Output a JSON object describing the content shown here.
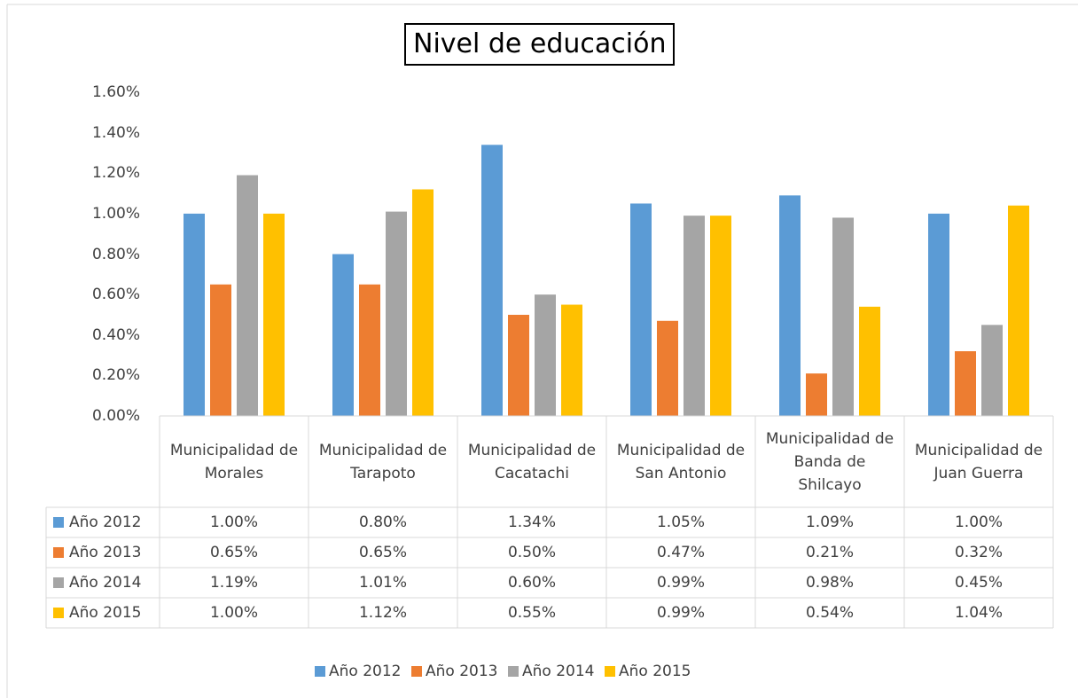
{
  "chart_data": {
    "type": "bar",
    "title": "Nivel de educación",
    "categories": [
      "Municipalidad de Morales",
      "Municipalidad de Tarapoto",
      "Municipalidad de Cacatachi",
      "Municipalidad de San Antonio",
      "Municipalidad de Banda de Shilcayo",
      "Municipalidad de Juan Guerra"
    ],
    "series": [
      {
        "name": "Año 2012",
        "color": "#5b9bd5",
        "values": [
          1.0,
          0.8,
          1.34,
          1.05,
          1.09,
          1.0
        ],
        "value_labels": [
          "1.00%",
          "0.80%",
          "1.34%",
          "1.05%",
          "1.09%",
          "1.00%"
        ]
      },
      {
        "name": "Año 2013",
        "color": "#ed7d31",
        "values": [
          0.65,
          0.65,
          0.5,
          0.47,
          0.21,
          0.32
        ],
        "value_labels": [
          "0.65%",
          "0.65%",
          "0.50%",
          "0.47%",
          "0.21%",
          "0.32%"
        ]
      },
      {
        "name": "Año 2014",
        "color": "#a5a5a5",
        "values": [
          1.19,
          1.01,
          0.6,
          0.99,
          0.98,
          0.45
        ],
        "value_labels": [
          "1.19%",
          "1.01%",
          "0.60%",
          "0.99%",
          "0.98%",
          "0.45%"
        ]
      },
      {
        "name": "Año 2015",
        "color": "#ffc000",
        "values": [
          1.0,
          1.12,
          0.55,
          0.99,
          0.54,
          1.04
        ],
        "value_labels": [
          "1.00%",
          "1.12%",
          "0.55%",
          "0.99%",
          "0.54%",
          "1.04%"
        ]
      }
    ],
    "ylim": [
      0,
      1.6
    ],
    "yticks": [
      {
        "value": 0,
        "label": "0.00%"
      },
      {
        "value": 0.2,
        "label": "0.20%"
      },
      {
        "value": 0.4,
        "label": "0.40%"
      },
      {
        "value": 0.6,
        "label": "0.60%"
      },
      {
        "value": 0.8,
        "label": "0.80%"
      },
      {
        "value": 1.0,
        "label": "1.00%"
      },
      {
        "value": 1.2,
        "label": "1.20%"
      },
      {
        "value": 1.4,
        "label": "1.40%"
      },
      {
        "value": 1.6,
        "label": "1.60%"
      }
    ],
    "legend": "bottom"
  }
}
